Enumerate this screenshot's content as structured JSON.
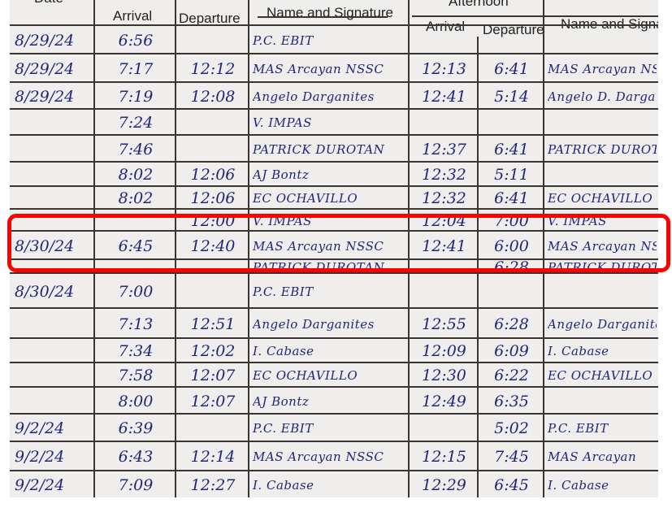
{
  "header": {
    "date": "Date",
    "morning_arrival": "Arrival",
    "morning_departure": "Departure",
    "morning_name": "Name and Signature",
    "afternoon": "Afternoon",
    "afternoon_arrival": "Arrival",
    "afternoon_departure": "Departure",
    "afternoon_name": "Name and Signature"
  },
  "highlight_color": "#ff0000",
  "ink_color": "#22257a",
  "rows": [
    {
      "date": "8/29/24",
      "am_arrival": "6:56",
      "am_departure": "",
      "am_name": "P.C. EBIT",
      "pm_arrival": "",
      "pm_departure": "",
      "pm_name": ""
    },
    {
      "date": "8/29/24",
      "am_arrival": "7:17",
      "am_departure": "12:12",
      "am_name": "MAS Arcayan NSSC",
      "pm_arrival": "12:13",
      "pm_departure": "6:41",
      "pm_name": "MAS Arcayan NSSC"
    },
    {
      "date": "8/29/24",
      "am_arrival": "7:19",
      "am_departure": "12:08",
      "am_name": "Angelo Darganites",
      "pm_arrival": "12:41",
      "pm_departure": "5:14",
      "pm_name": "Angelo D. Darganites"
    },
    {
      "date": "",
      "am_arrival": "7:24",
      "am_departure": "",
      "am_name": "V. IMPAS",
      "pm_arrival": "",
      "pm_departure": "",
      "pm_name": ""
    },
    {
      "date": "",
      "am_arrival": "7:46",
      "am_departure": "",
      "am_name": "PATRICK DUROTAN",
      "pm_arrival": "12:37",
      "pm_departure": "6:41",
      "pm_name": "PATRICK DUROTAN"
    },
    {
      "date": "",
      "am_arrival": "8:02",
      "am_departure": "12:06",
      "am_name": "AJ Bontz",
      "pm_arrival": "12:32",
      "pm_departure": "5:11",
      "pm_name": ""
    },
    {
      "date": "",
      "am_arrival": "8:02",
      "am_departure": "12:06",
      "am_name": "EC OCHAVILLO",
      "pm_arrival": "12:32",
      "pm_departure": "6:41",
      "pm_name": "EC OCHAVILLO"
    },
    {
      "date": "",
      "am_arrival": "",
      "am_departure": "12:00",
      "am_name": "V. IMPAS",
      "pm_arrival": "12:04",
      "pm_departure": "7:00",
      "pm_name": "V. IMPAS"
    },
    {
      "date": "8/30/24",
      "am_arrival": "6:45",
      "am_departure": "12:40",
      "am_name": "MAS Arcayan NSSC",
      "pm_arrival": "12:41",
      "pm_departure": "6:00",
      "pm_name": "MAS Arcayan NSSC"
    },
    {
      "date": "",
      "am_arrival": "",
      "am_departure": "",
      "am_name": "PATRICK DUROTAN",
      "pm_arrival": "",
      "pm_departure": "6:28",
      "pm_name": "PATRICK DUROTAN"
    },
    {
      "date": "8/30/24",
      "am_arrival": "7:00",
      "am_departure": "",
      "am_name": "P.C. EBIT",
      "pm_arrival": "",
      "pm_departure": "",
      "pm_name": ""
    },
    {
      "date": "",
      "am_arrival": "7:13",
      "am_departure": "12:51",
      "am_name": "Angelo Darganites",
      "pm_arrival": "12:55",
      "pm_departure": "6:28",
      "pm_name": "Angelo Darganites"
    },
    {
      "date": "",
      "am_arrival": "7:34",
      "am_departure": "12:02",
      "am_name": "I. Cabase",
      "pm_arrival": "12:09",
      "pm_departure": "6:09",
      "pm_name": "I. Cabase"
    },
    {
      "date": "",
      "am_arrival": "7:58",
      "am_departure": "12:07",
      "am_name": "EC OCHAVILLO",
      "pm_arrival": "12:30",
      "pm_departure": "6:22",
      "pm_name": "EC OCHAVILLO"
    },
    {
      "date": "",
      "am_arrival": "8:00",
      "am_departure": "12:07",
      "am_name": "AJ Bontz",
      "pm_arrival": "12:49",
      "pm_departure": "6:35",
      "pm_name": ""
    },
    {
      "date": "9/2/24",
      "am_arrival": "6:39",
      "am_departure": "",
      "am_name": "P.C. EBIT",
      "pm_arrival": "",
      "pm_departure": "5:02",
      "pm_name": "P.C. EBIT"
    },
    {
      "date": "9/2/24",
      "am_arrival": "6:43",
      "am_departure": "12:14",
      "am_name": "MAS Arcayan NSSC",
      "pm_arrival": "12:15",
      "pm_departure": "7:45",
      "pm_name": "MAS Arcayan"
    },
    {
      "date": "9/2/24",
      "am_arrival": "7:09",
      "am_departure": "12:27",
      "am_name": "I. Cabase",
      "pm_arrival": "12:29",
      "pm_departure": "6:45",
      "pm_name": "I. Cabase"
    }
  ]
}
